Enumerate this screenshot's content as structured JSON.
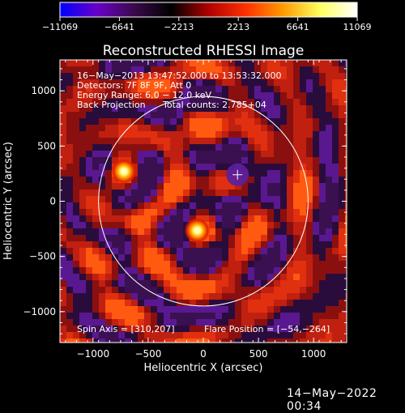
{
  "chart_data": {
    "type": "heatmap",
    "title": "Reconstructed RHESSI Image",
    "xlabel": "Heliocentric X (arcsec)",
    "ylabel": "Heliocentric Y (arcsec)",
    "xlim": [
      -1300,
      1300
    ],
    "ylim": [
      -1280,
      1280
    ],
    "xticks": [
      -1000,
      -500,
      0,
      500,
      1000
    ],
    "yticks": [
      -1000,
      -500,
      0,
      500,
      1000
    ],
    "xtick_labels": [
      "−1000",
      "−500",
      "0",
      "500",
      "1000"
    ],
    "ytick_labels": [
      "−1000",
      "−500",
      "0",
      "500",
      "1000"
    ],
    "colorbar": {
      "min": -11069,
      "max": 11069,
      "ticks": [
        -11069,
        -6641,
        -2213,
        2213,
        6641,
        11069
      ],
      "tick_labels": [
        "−11069",
        "−6641",
        "−2213",
        "2213",
        "6641",
        "11069"
      ],
      "colormap": [
        "#0000ff",
        "#6a00c8",
        "#3a0a4a",
        "#000000",
        "#b00000",
        "#ff3000",
        "#ff9a00",
        "#ffff60",
        "#ffffff"
      ]
    },
    "annotations": [
      "16−May−2013 13:47:52.000 to 13:53:32.000",
      "Detectors: 7F 8F 9F, Att 0",
      "Energy Range: 6.0 − 12.0 keV",
      "Back Projection",
      "Total counts: 2.785+04"
    ],
    "footer": {
      "spin_axis": "Spin Axis = [310,207]",
      "flare_position": "Flare Position = [−54,−264]"
    },
    "solar_limb_radius": 950,
    "marker": {
      "x": 310,
      "y": 240
    },
    "sources": [
      {
        "x": -720,
        "y": 270,
        "peak": 11069
      },
      {
        "x": -55,
        "y": -265,
        "peak": 11069
      },
      {
        "x": 310,
        "y": 240,
        "peak": -6641
      }
    ]
  },
  "timestamp": "14−May−2022 00:34"
}
